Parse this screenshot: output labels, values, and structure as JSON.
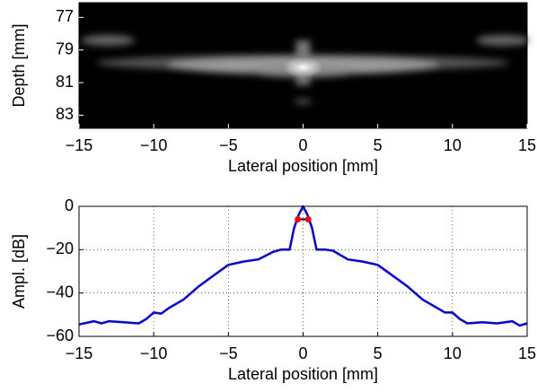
{
  "chart_data": [
    {
      "type": "image",
      "xlabel": "Lateral position [mm]",
      "ylabel": "Depth [mm]",
      "xlim": [
        -15,
        15
      ],
      "ylim": [
        76.1,
        83.8
      ],
      "y_inverted": true,
      "xticks": [
        {
          "value": -15,
          "label": "−15"
        },
        {
          "value": -10,
          "label": "−10"
        },
        {
          "value": -5,
          "label": "−5"
        },
        0,
        5,
        10,
        15
      ],
      "yticks": [
        77,
        79,
        81,
        83
      ]
    },
    {
      "type": "line",
      "xlabel": "Lateral position [mm]",
      "ylabel": "Ampl. [dB]",
      "xlim": [
        -15,
        15
      ],
      "ylim": [
        -60,
        0
      ],
      "grid": true,
      "xticks": [
        {
          "value": -15,
          "label": "−15"
        },
        {
          "value": -10,
          "label": "−10"
        },
        {
          "value": -5,
          "label": "−5"
        },
        0,
        5,
        10,
        15
      ],
      "yticks": [
        {
          "value": -60,
          "label": "−60"
        },
        {
          "value": -40,
          "label": "−40"
        },
        {
          "value": -20,
          "label": "−20"
        },
        0
      ],
      "series": [
        {
          "color": "#0000ff",
          "x": [
            -15,
            -14,
            -13.5,
            -13,
            -12,
            -11,
            -10.5,
            -10,
            -9.5,
            -9,
            -8,
            -7,
            -6,
            -5,
            -4,
            -3,
            -2,
            -1.5,
            -0.9,
            -0.6,
            -0.3,
            0,
            0.3,
            0.6,
            0.9,
            1.5,
            2,
            3,
            4,
            5,
            6,
            7,
            8,
            9,
            9.5,
            10,
            10.5,
            11,
            12,
            13,
            14,
            14.5,
            15
          ],
          "values": [
            -54.5,
            -53,
            -54,
            -53,
            -53.5,
            -54,
            -52,
            -49,
            -49.5,
            -47,
            -43,
            -37,
            -32,
            -27,
            -25.5,
            -24.5,
            -21,
            -20,
            -20,
            -10,
            -4,
            0,
            -4,
            -10,
            -20,
            -20,
            -20.5,
            -24.5,
            -25.5,
            -27,
            -32,
            -37,
            -43,
            -47,
            -49,
            -49,
            -52,
            -54,
            -53.5,
            -54,
            -53,
            -55,
            -54
          ]
        },
        {
          "color": "#ff0000",
          "marker": "o",
          "x": [
            -0.35,
            0.35
          ],
          "values": [
            -6,
            -6
          ]
        }
      ]
    }
  ]
}
